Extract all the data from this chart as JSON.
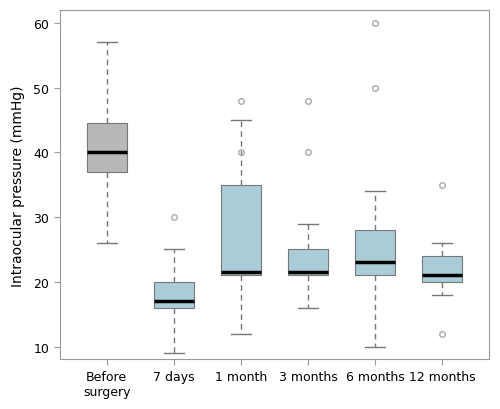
{
  "categories": [
    "Before\nsurgery",
    "7 days",
    "1 month",
    "3 months",
    "6 months",
    "12 months"
  ],
  "box_data": [
    {
      "q1": 37,
      "median": 40,
      "q3": 44.5,
      "whislo": 26,
      "whishi": 57,
      "fliers": []
    },
    {
      "q1": 16,
      "median": 17,
      "q3": 20,
      "whislo": 9,
      "whishi": 25,
      "fliers": [
        30
      ]
    },
    {
      "q1": 21,
      "median": 21.5,
      "q3": 35,
      "whislo": 12,
      "whishi": 45,
      "fliers": [
        40,
        48
      ]
    },
    {
      "q1": 21,
      "median": 21.5,
      "q3": 25,
      "whislo": 16,
      "whishi": 29,
      "fliers": [
        40,
        48
      ]
    },
    {
      "q1": 21,
      "median": 23,
      "q3": 28,
      "whislo": 10,
      "whishi": 34,
      "fliers": [
        50,
        60
      ]
    },
    {
      "q1": 20,
      "median": 21,
      "q3": 24,
      "whislo": 18,
      "whishi": 26,
      "fliers": [
        12,
        35
      ]
    }
  ],
  "colors": [
    "#b8b8b8",
    "#a8cdd8",
    "#a8cdd8",
    "#a8cdd8",
    "#a8cdd8",
    "#a8cdd8"
  ],
  "ylabel": "Intraocular pressure (mmHg)",
  "ylim": [
    8,
    62
  ],
  "yticks": [
    10,
    20,
    30,
    40,
    50,
    60
  ],
  "background_color": "#ffffff",
  "median_color": "black",
  "whisker_color": "#777777",
  "box_edge_color": "#777777",
  "flier_color": "#aaaaaa",
  "cap_color": "#777777"
}
